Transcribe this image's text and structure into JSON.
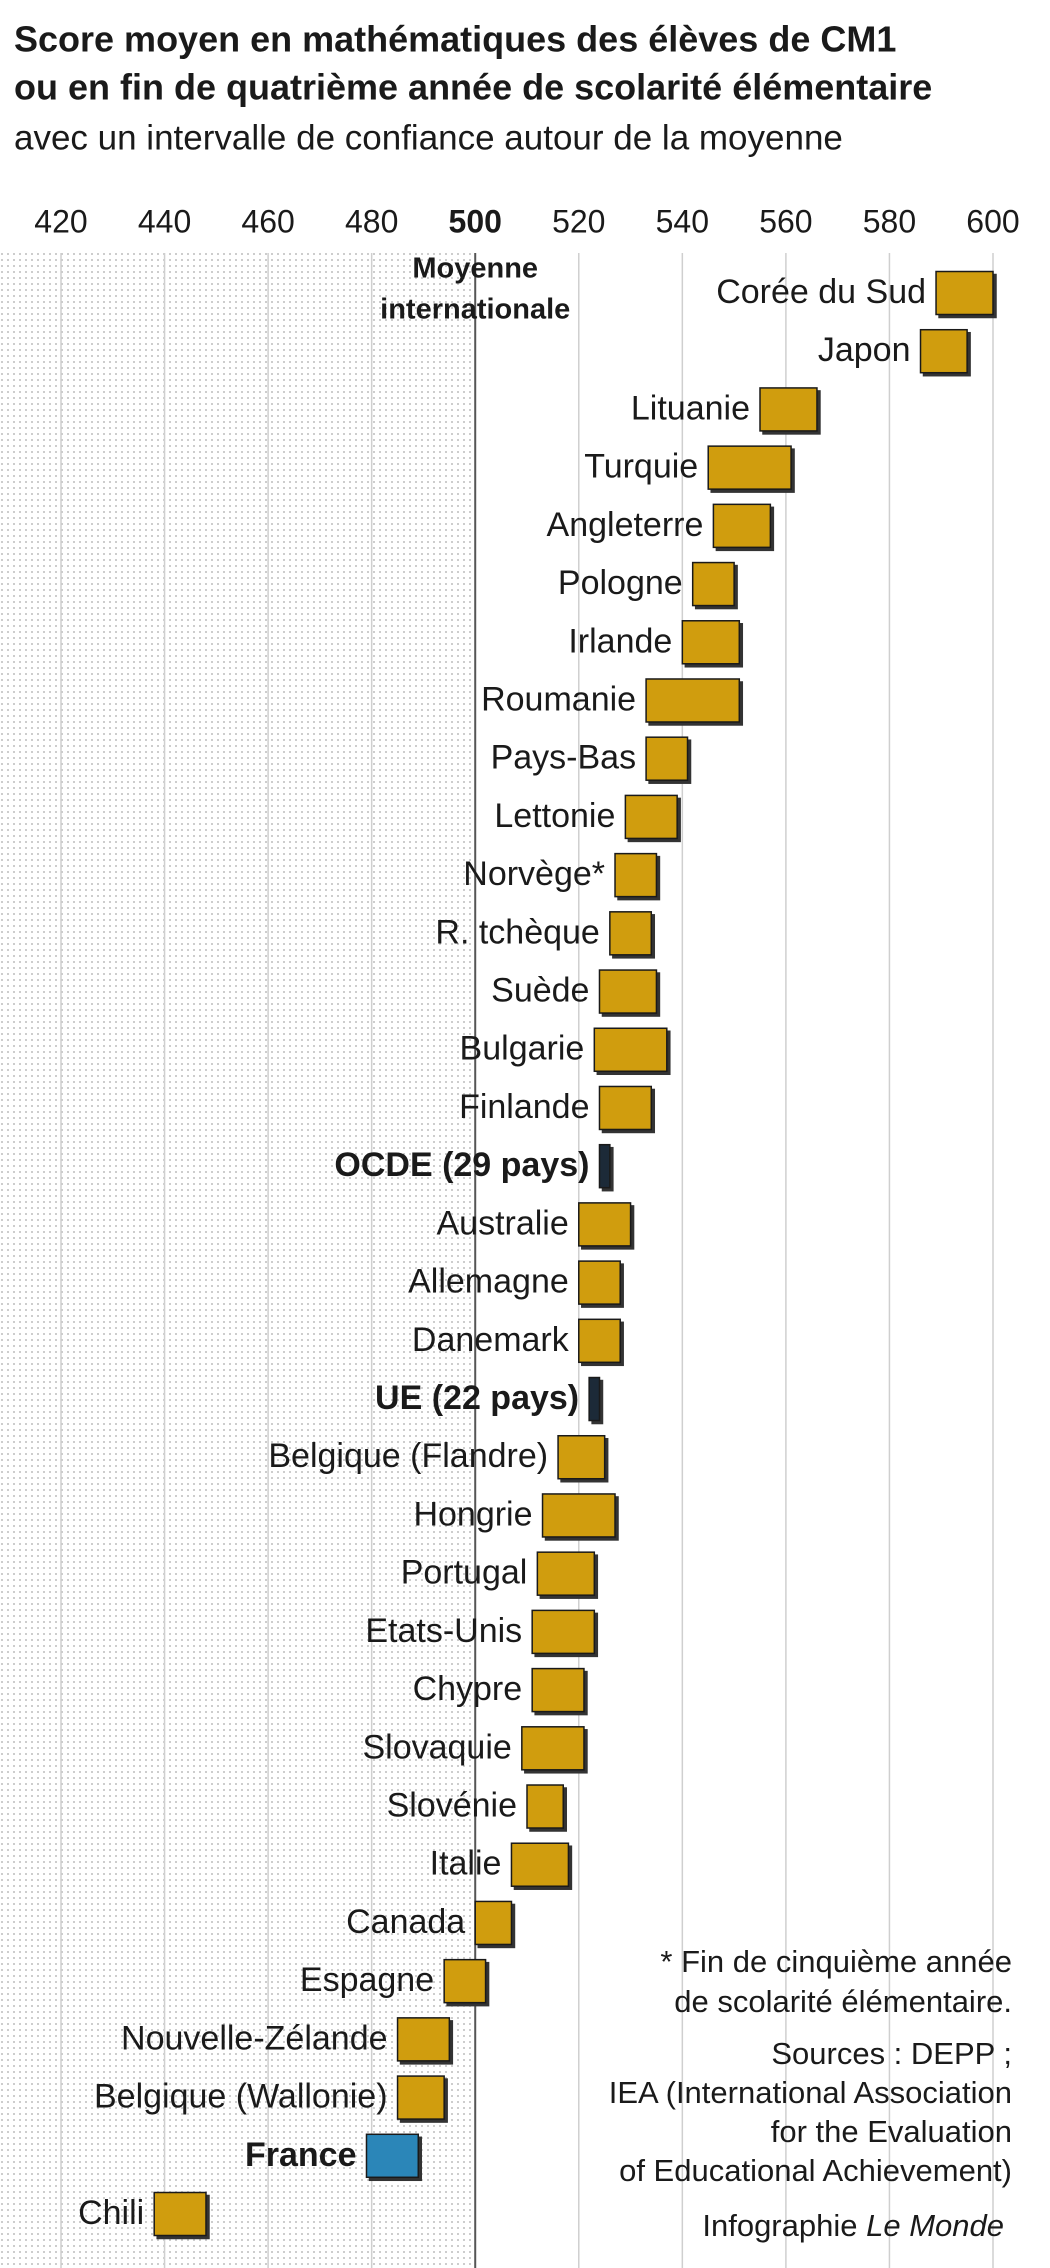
{
  "chart_data": {
    "type": "range",
    "title": [
      "Score moyen en mathématiques des élèves de CM1",
      "ou en fin de quatrième année de scolarité élémentaire"
    ],
    "subtitle": "avec un intervalle de confiance autour de la moyenne",
    "xlim": [
      420,
      600
    ],
    "xticks": [
      420,
      440,
      460,
      480,
      500,
      520,
      540,
      560,
      580,
      600
    ],
    "grid": true,
    "reference": {
      "value": 500,
      "label": [
        "Moyenne",
        "internationale"
      ]
    },
    "categories": [
      "Corée du Sud",
      "Japon",
      "Lituanie",
      "Turquie",
      "Angleterre",
      "Pologne",
      "Irlande",
      "Roumanie",
      "Pays-Bas",
      "Lettonie",
      "Norvège*",
      "R. tchèque",
      "Suède",
      "Bulgarie",
      "Finlande",
      "OCDE (29 pays)",
      "Australie",
      "Allemagne",
      "Danemark",
      "UE (22 pays)",
      "Belgique (Flandre)",
      "Hongrie",
      "Portugal",
      "Etats-Unis",
      "Chypre",
      "Slovaquie",
      "Slovénie",
      "Italie",
      "Canada",
      "Espagne",
      "Nouvelle-Zélande",
      "Belgique (Wallonie)",
      "France",
      "Chili"
    ],
    "low": [
      589,
      586,
      555,
      545,
      546,
      542,
      540,
      533,
      533,
      529,
      527,
      526,
      524,
      523,
      524,
      524,
      520,
      520,
      520,
      522,
      516,
      513,
      512,
      511,
      511,
      509,
      510,
      507,
      500,
      494,
      485,
      485,
      479,
      438
    ],
    "high": [
      600,
      595,
      566,
      561,
      557,
      550,
      551,
      551,
      541,
      539,
      535,
      534,
      535,
      537,
      534,
      526,
      530,
      528,
      528,
      524,
      525,
      527,
      523,
      523,
      521,
      521,
      517,
      518,
      507,
      502,
      495,
      494,
      489,
      448
    ],
    "colors": [
      "#d09d0e",
      "#d09d0e",
      "#d09d0e",
      "#d09d0e",
      "#d09d0e",
      "#d09d0e",
      "#d09d0e",
      "#d09d0e",
      "#d09d0e",
      "#d09d0e",
      "#d09d0e",
      "#d09d0e",
      "#d09d0e",
      "#d09d0e",
      "#d09d0e",
      "#1c2a38",
      "#d09d0e",
      "#d09d0e",
      "#d09d0e",
      "#1c2a38",
      "#d09d0e",
      "#d09d0e",
      "#d09d0e",
      "#d09d0e",
      "#d09d0e",
      "#d09d0e",
      "#d09d0e",
      "#d09d0e",
      "#d09d0e",
      "#d09d0e",
      "#d09d0e",
      "#d09d0e",
      "#2b86b8",
      "#d09d0e"
    ],
    "bold": [
      false,
      false,
      false,
      false,
      false,
      false,
      false,
      false,
      false,
      false,
      false,
      false,
      false,
      false,
      false,
      true,
      false,
      false,
      false,
      true,
      false,
      false,
      false,
      false,
      false,
      false,
      false,
      false,
      false,
      false,
      false,
      false,
      true,
      false
    ],
    "notes": [
      "* Fin de cinquième année",
      "de scolarité élémentaire.",
      "Sources : DEPP ;",
      "IEA (International Association",
      "for the Evaluation",
      "of Educational Achievement)"
    ],
    "credit": {
      "text": "Infographie",
      "italic": "Le Monde"
    }
  }
}
